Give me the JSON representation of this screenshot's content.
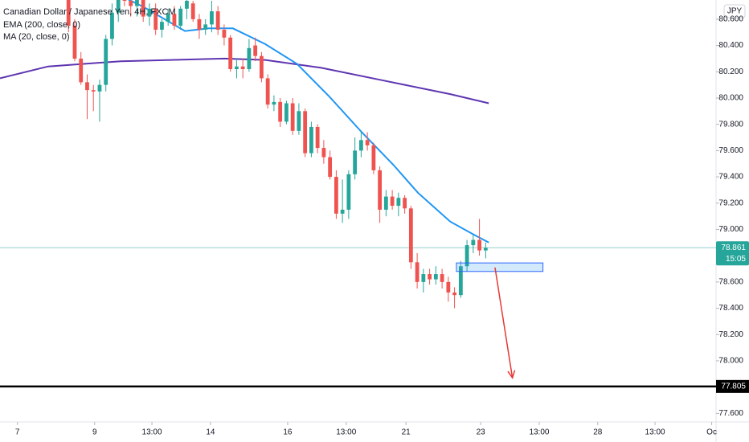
{
  "chart_data": {
    "type": "candlestick",
    "title": "Canadian Dollar / Japanese Yen, 4H, FXCM",
    "currency": "JPY",
    "up_color": "#26a69a",
    "down_color": "#ef5350",
    "x": [
      11,
      12,
      13,
      14,
      15,
      16,
      17,
      18,
      19,
      20,
      21,
      22,
      23,
      24,
      25,
      26,
      27,
      28,
      29,
      30,
      31,
      32,
      33,
      34,
      35,
      36,
      37,
      38,
      39,
      40,
      41,
      42,
      43,
      44,
      45,
      46,
      47,
      48,
      49,
      50,
      51,
      52,
      53,
      54,
      55,
      56,
      57,
      58,
      59,
      60,
      61,
      62,
      63,
      64,
      65,
      66,
      67,
      68,
      69,
      70,
      71,
      72,
      73,
      74,
      75,
      76,
      77,
      78
    ],
    "open": [
      80.78,
      80.55,
      80.3,
      80.12,
      80.06,
      80.05,
      80.1,
      80.45,
      80.65,
      80.85,
      80.74,
      80.7,
      80.75,
      80.62,
      80.68,
      80.52,
      80.58,
      80.64,
      80.55,
      80.68,
      80.72,
      80.6,
      80.52,
      80.56,
      80.66,
      80.52,
      80.46,
      80.22,
      80.24,
      80.22,
      80.4,
      80.32,
      80.15,
      79.95,
      79.97,
      79.82,
      79.96,
      79.75,
      79.9,
      79.58,
      79.78,
      79.62,
      79.55,
      79.4,
      79.12,
      79.15,
      79.42,
      79.6,
      79.68,
      79.64,
      79.45,
      79.15,
      79.25,
      79.18,
      79.24,
      79.16,
      78.75,
      78.6,
      78.66,
      78.62,
      78.66,
      78.6,
      78.52,
      78.5,
      78.72,
      78.88,
      78.92,
      78.84
    ],
    "high": [
      80.85,
      80.6,
      80.35,
      80.18,
      80.1,
      80.14,
      80.48,
      80.72,
      80.9,
      80.88,
      80.8,
      80.78,
      80.78,
      80.72,
      80.72,
      80.6,
      80.68,
      80.7,
      80.7,
      80.8,
      80.74,
      80.64,
      80.6,
      80.74,
      80.7,
      80.56,
      80.48,
      80.3,
      80.3,
      80.45,
      80.46,
      80.35,
      80.18,
      80.02,
      80.0,
      79.98,
      80.0,
      79.96,
      79.92,
      79.82,
      79.8,
      79.68,
      79.6,
      79.45,
      79.38,
      79.45,
      79.7,
      79.75,
      79.74,
      79.66,
      79.48,
      79.3,
      79.3,
      79.28,
      79.26,
      79.18,
      78.82,
      78.7,
      78.7,
      78.72,
      78.7,
      78.64,
      78.56,
      78.76,
      78.92,
      78.96,
      79.08,
      78.9
    ],
    "low": [
      80.5,
      80.28,
      80.1,
      79.84,
      79.9,
      79.82,
      80.05,
      80.4,
      80.58,
      80.7,
      80.62,
      80.62,
      80.58,
      80.55,
      80.48,
      80.46,
      80.55,
      80.52,
      80.52,
      80.6,
      80.58,
      80.45,
      80.48,
      80.5,
      80.48,
      80.4,
      80.2,
      80.15,
      80.15,
      80.2,
      80.28,
      80.12,
      79.92,
      79.9,
      79.78,
      79.8,
      79.72,
      79.72,
      79.55,
      79.55,
      79.58,
      79.5,
      79.38,
      79.08,
      79.05,
      79.08,
      79.38,
      79.55,
      79.6,
      79.42,
      79.05,
      79.1,
      79.15,
      79.1,
      79.12,
      78.7,
      78.55,
      78.52,
      78.58,
      78.58,
      78.55,
      78.45,
      78.4,
      78.48,
      78.68,
      78.82,
      78.8,
      78.78
    ],
    "close": [
      80.55,
      80.3,
      80.12,
      80.06,
      80.05,
      80.1,
      80.45,
      80.65,
      80.85,
      80.74,
      80.7,
      80.75,
      80.62,
      80.68,
      80.52,
      80.58,
      80.64,
      80.55,
      80.68,
      80.74,
      80.6,
      80.52,
      80.56,
      80.66,
      80.52,
      80.46,
      80.22,
      80.24,
      80.22,
      80.38,
      80.32,
      80.15,
      79.95,
      79.97,
      79.82,
      79.96,
      79.75,
      79.9,
      79.58,
      79.78,
      79.62,
      79.55,
      79.4,
      79.12,
      79.15,
      79.42,
      79.6,
      79.68,
      79.64,
      79.45,
      79.15,
      79.25,
      79.18,
      79.24,
      79.16,
      78.75,
      78.6,
      78.66,
      78.62,
      78.66,
      78.6,
      78.52,
      78.5,
      78.72,
      78.88,
      78.92,
      78.84,
      78.86
    ],
    "lines": [
      {
        "name": "EMA (200, close, 0)",
        "color": "#5e35b1",
        "x": [
          0,
          7.7,
          19.4,
          36.1,
          42.6,
          51.6,
          61.9,
          72.3,
          78.5
        ],
        "values": [
          80.15,
          80.24,
          80.28,
          80.3,
          80.29,
          80.23,
          80.13,
          80.03,
          79.96
        ]
      },
      {
        "name": "MA (20, close, 0)",
        "color": "#2196f3",
        "x": [
          20.6,
          23.2,
          29.7,
          33.5,
          37.4,
          42.6,
          47.7,
          52.9,
          58.1,
          63.2,
          67.1,
          72.3,
          76.1,
          78.5
        ],
        "values": [
          80.75,
          80.69,
          80.51,
          80.53,
          80.53,
          80.41,
          80.26,
          80.01,
          79.74,
          79.49,
          79.28,
          79.06,
          78.96,
          78.9
        ]
      }
    ],
    "xlim": [
      0,
      115
    ],
    "ylim": [
      77.535,
      80.746
    ],
    "xticks": [
      {
        "value": 2.8,
        "label": "7"
      },
      {
        "value": 15.2,
        "label": "9"
      },
      {
        "value": 24.4,
        "label": "13:00"
      },
      {
        "value": 33.8,
        "label": "14"
      },
      {
        "value": 46.2,
        "label": "16"
      },
      {
        "value": 55.6,
        "label": "13:00"
      },
      {
        "value": 65.2,
        "label": "21"
      },
      {
        "value": 77.2,
        "label": "23"
      },
      {
        "value": 86.6,
        "label": "13:00"
      },
      {
        "value": 96,
        "label": "28"
      },
      {
        "value": 105.2,
        "label": "13:00"
      },
      {
        "value": 114.3,
        "label": "Oc"
      }
    ],
    "yticks": [
      {
        "value": 80.6,
        "label": "80.600"
      },
      {
        "value": 80.4,
        "label": "80.400"
      },
      {
        "value": 80.2,
        "label": "80.200"
      },
      {
        "value": 80,
        "label": "80.000"
      },
      {
        "value": 79.8,
        "label": "79.800"
      },
      {
        "value": 79.6,
        "label": "79.600"
      },
      {
        "value": 79.4,
        "label": "79.400"
      },
      {
        "value": 79.2,
        "label": "79.200"
      },
      {
        "value": 79,
        "label": "79.000"
      },
      {
        "value": 78.6,
        "label": "78.600"
      },
      {
        "value": 78.4,
        "label": "78.400"
      },
      {
        "value": 78.2,
        "label": "78.200"
      },
      {
        "value": 78,
        "label": "78.000"
      },
      {
        "value": 77.6,
        "label": "77.600"
      }
    ],
    "last_price": {
      "value": 78.861,
      "label": "78.861",
      "countdown": "15:05"
    },
    "level": {
      "value": 77.805,
      "label": "77.805"
    },
    "zone": {
      "low": 78.68,
      "high": 78.745,
      "x": [
        73.3,
        87.2
      ]
    },
    "arrow": {
      "x": [
        79.5,
        82.3
      ],
      "y": [
        78.71,
        77.87
      ]
    }
  }
}
